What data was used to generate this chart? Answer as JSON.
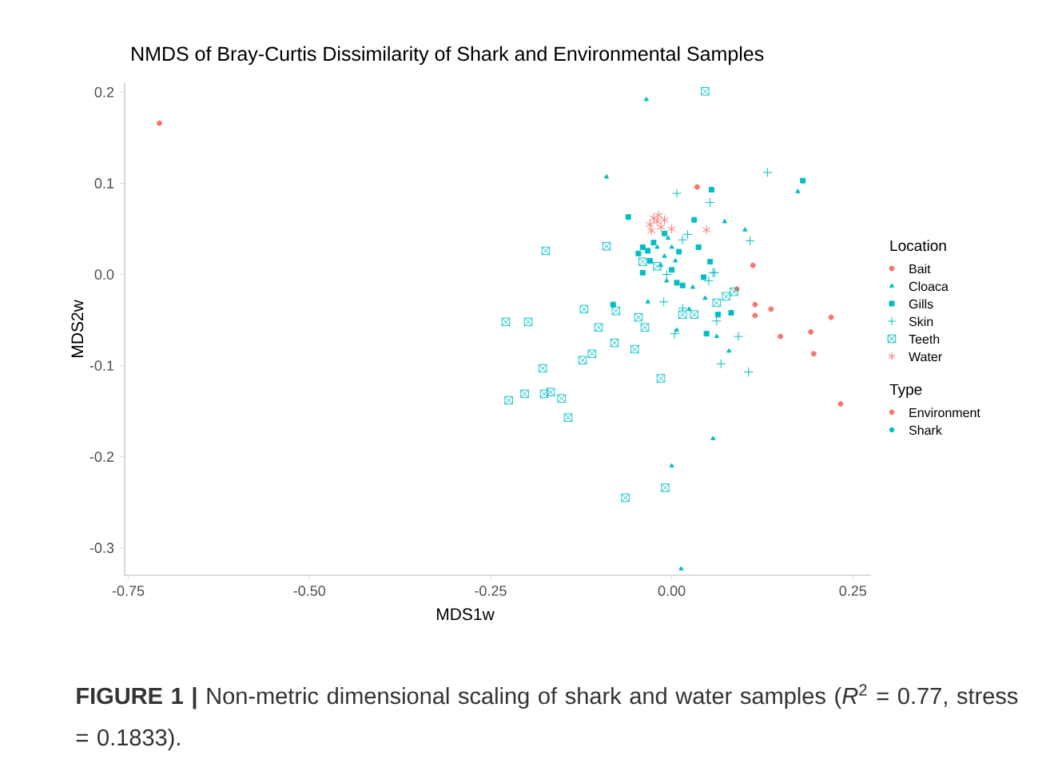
{
  "chart_data": {
    "type": "scatter",
    "title": "NMDS of Bray-Curtis Dissimilarity of Shark and Environmental Samples",
    "xlabel": "MDS1w",
    "ylabel": "MDS2w",
    "legend": "right",
    "legend_title": "Location",
    "xlim": [
      -0.755,
      0.275
    ],
    "ylim": [
      -0.33,
      0.21
    ],
    "xticks": [
      {
        "value": -0.75,
        "label": "-0.75"
      },
      {
        "value": -0.5,
        "label": "-0.50"
      },
      {
        "value": -0.25,
        "label": "-0.25"
      },
      {
        "value": 0,
        "label": "0.00"
      },
      {
        "value": 0.25,
        "label": "0.25"
      }
    ],
    "yticks": [
      {
        "value": -0.3,
        "label": "-0.3"
      },
      {
        "value": -0.2,
        "label": "-0.2"
      },
      {
        "value": -0.1,
        "label": "-0.1"
      },
      {
        "value": 0,
        "label": "0.0"
      },
      {
        "value": 0.1,
        "label": "0.1"
      },
      {
        "value": 0.2,
        "label": "0.2"
      }
    ],
    "series": [
      {
        "name": "Bait",
        "color": "#f8766d",
        "marker": "circle",
        "x": [
          -0.707,
          0.112,
          0.09,
          0.115,
          0.115,
          0.137,
          0.15,
          0.22,
          0.192,
          0.196,
          0.233,
          0.035
        ],
        "values": [
          0.166,
          0.01,
          -0.016,
          -0.033,
          -0.045,
          -0.038,
          -0.068,
          -0.047,
          -0.063,
          -0.087,
          -0.142,
          0.096
        ]
      },
      {
        "name": "Cloaca",
        "color": "#00bfc4",
        "marker": "triangle",
        "x": [
          -0.035,
          -0.09,
          0.174,
          0.073,
          0.101,
          -0.033,
          -0.007,
          0.029,
          0.046,
          0.024,
          0.007,
          0.062,
          0.079,
          0.057,
          0.0,
          0.013,
          -0.02,
          -0.01,
          0.0,
          -0.015,
          0.005,
          -0.005
        ],
        "values": [
          0.192,
          0.107,
          0.091,
          0.058,
          0.049,
          -0.03,
          -0.007,
          -0.014,
          -0.026,
          -0.038,
          -0.061,
          -0.068,
          -0.084,
          -0.18,
          -0.21,
          -0.323,
          0.03,
          0.02,
          0.03,
          0.01,
          0.015,
          0.04
        ]
      },
      {
        "name": "Gills",
        "color": "#00bfc4",
        "marker": "square",
        "x": [
          -0.06,
          0.031,
          0.055,
          0.181,
          0.053,
          0.082,
          0.064,
          0.048,
          -0.046,
          -0.033,
          -0.04,
          -0.081,
          0.007,
          0.015,
          0.037,
          0.044,
          -0.025,
          -0.01,
          0.0,
          -0.03,
          0.01,
          -0.04
        ],
        "values": [
          0.063,
          0.06,
          0.093,
          0.103,
          0.014,
          -0.042,
          -0.044,
          -0.065,
          0.023,
          0.026,
          0.002,
          -0.033,
          -0.009,
          -0.012,
          0.03,
          -0.003,
          0.035,
          0.045,
          0.005,
          0.015,
          0.025,
          0.03
        ]
      },
      {
        "name": "Skin",
        "color": "#00bfc4",
        "marker": "cross",
        "x": [
          0.007,
          0.053,
          0.022,
          0.132,
          0.108,
          0.057,
          0.051,
          0.062,
          0.092,
          0.068,
          0.106,
          -0.011,
          0.015,
          0.004,
          -0.007,
          0.059,
          0.015
        ],
        "values": [
          0.089,
          0.079,
          0.044,
          0.112,
          0.037,
          0.002,
          -0.007,
          -0.051,
          -0.068,
          -0.098,
          -0.107,
          -0.03,
          -0.037,
          -0.065,
          0.0,
          0.002,
          0.038
        ]
      },
      {
        "name": "Teeth",
        "color": "#00bfc4",
        "marker": "cross",
        "x": [
          0.046,
          -0.174,
          -0.09,
          -0.229,
          -0.198,
          -0.121,
          -0.077,
          -0.101,
          -0.046,
          -0.037,
          -0.079,
          -0.051,
          -0.11,
          -0.123,
          -0.178,
          -0.015,
          -0.203,
          -0.176,
          -0.167,
          -0.152,
          -0.225,
          -0.04,
          -0.02,
          0.015,
          0.031,
          0.062,
          0.075,
          0.086,
          -0.143,
          -0.064,
          -0.009
        ],
        "values": [
          0.201,
          0.026,
          0.031,
          -0.052,
          -0.052,
          -0.038,
          -0.04,
          -0.058,
          -0.047,
          -0.058,
          -0.075,
          -0.082,
          -0.087,
          -0.094,
          -0.103,
          -0.114,
          -0.131,
          -0.131,
          -0.129,
          -0.136,
          -0.138,
          0.014,
          0.009,
          -0.044,
          -0.044,
          -0.031,
          -0.024,
          -0.019,
          -0.157,
          -0.245,
          -0.234
        ]
      },
      {
        "name": "Water",
        "color": "#f8766d",
        "marker": "cross",
        "x": [
          -0.03,
          -0.025,
          -0.02,
          -0.015,
          -0.028,
          -0.018,
          -0.01,
          0.0,
          0.048
        ],
        "values": [
          0.055,
          0.062,
          0.058,
          0.052,
          0.048,
          0.065,
          0.06,
          0.05,
          0.049
        ]
      }
    ],
    "annotations": [
      "Type",
      "Environment",
      "Shark",
      "**FIGURE 1 |** Non-metric dimensional scaling of shark and water samples (*R*$^{2}$ = 0.77, stress = 0.1833)."
    ]
  }
}
